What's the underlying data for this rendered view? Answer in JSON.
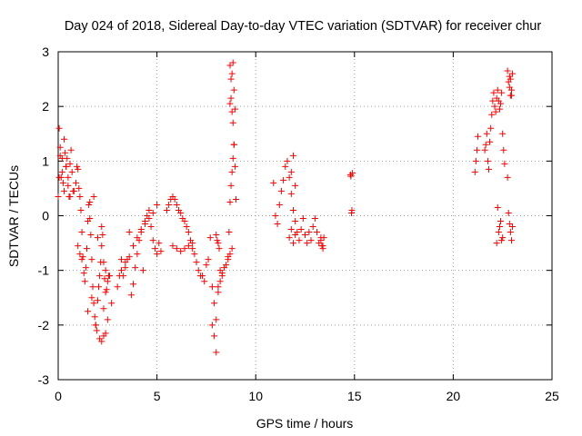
{
  "chart_data": {
    "type": "scatter",
    "title": "Day 024 of 2018, Sidereal Day-to-day VTEC variation (SDTVAR) for receiver chur",
    "xlabel": "GPS time / hours",
    "ylabel": "SDTVAR / TECUs",
    "xlim": [
      0,
      25
    ],
    "ylim": [
      -3,
      3
    ],
    "xticks": [
      0,
      5,
      10,
      15,
      20,
      25
    ],
    "yticks": [
      -3,
      -2,
      -1,
      0,
      1,
      2,
      3
    ],
    "xtick_labels": [
      "0",
      "5",
      "10",
      "15",
      "20",
      "25"
    ],
    "ytick_labels": [
      "-3",
      "-2",
      "-1",
      "0",
      "1",
      "2",
      "3"
    ],
    "grid": true,
    "marker": "+",
    "color": "#ff0000",
    "series": [
      {
        "name": "SDTVAR",
        "x": [
          0.0,
          0.05,
          0.1,
          0.15,
          0.2,
          0.25,
          0.3,
          0.35,
          0.4,
          0.45,
          0.5,
          0.55,
          0.6,
          0.65,
          0.7,
          0.75,
          0.8,
          0.05,
          0.1,
          0.2,
          0.3,
          0.4,
          0.5,
          0.6,
          0.9,
          0.95,
          1.0,
          1.05,
          1.1,
          1.15,
          1.2,
          1.25,
          1.3,
          1.35,
          1.4,
          1.45,
          1.5,
          1.55,
          1.6,
          1.65,
          1.7,
          1.75,
          1.8,
          1.85,
          1.9,
          1.95,
          2.0,
          2.05,
          2.1,
          2.15,
          2.2,
          2.25,
          2.3,
          2.35,
          2.4,
          2.45,
          2.5,
          2.55,
          1.0,
          1.1,
          1.2,
          1.6,
          1.8,
          2.0,
          2.2,
          2.4,
          2.6,
          1.5,
          1.7,
          1.9,
          2.1,
          2.3,
          2.5,
          2.7,
          2.2,
          2.3,
          2.4,
          3.0,
          3.1,
          3.2,
          3.3,
          3.4,
          3.5,
          3.6,
          3.7,
          3.8,
          3.9,
          4.0,
          4.1,
          4.2,
          4.3,
          4.4,
          4.5,
          4.6,
          4.7,
          4.8,
          4.9,
          5.0,
          5.1,
          5.2,
          3.2,
          3.4,
          3.6,
          3.8,
          4.0,
          4.2,
          4.4,
          4.6,
          4.8,
          5.0,
          5.5,
          5.6,
          5.7,
          5.8,
          5.9,
          6.0,
          6.1,
          6.2,
          6.3,
          6.4,
          6.5,
          6.6,
          6.7,
          6.8,
          6.9,
          7.0,
          7.1,
          7.2,
          5.8,
          6.0,
          6.2,
          6.4,
          6.6,
          6.8,
          7.3,
          7.4,
          7.5,
          7.6,
          7.7,
          7.8,
          7.9,
          8.0,
          8.1,
          8.2,
          8.3,
          8.4,
          8.5,
          8.6,
          8.7,
          8.8,
          7.8,
          7.9,
          8.0,
          8.1,
          8.2,
          8.3,
          8.0,
          8.1,
          8.05,
          8.15,
          8.6,
          8.65,
          8.7,
          8.75,
          8.8,
          8.85,
          8.9,
          8.95,
          9.0,
          8.7,
          8.75,
          8.8,
          8.85,
          8.9,
          8.95,
          8.7,
          8.75,
          8.8,
          8.85,
          8.9,
          10.9,
          11.0,
          11.1,
          11.2,
          11.3,
          11.4,
          11.5,
          11.6,
          11.7,
          11.8,
          11.9,
          12.0,
          12.1,
          12.2,
          12.3,
          12.4,
          12.5,
          12.6,
          12.7,
          12.8,
          12.9,
          13.0,
          13.1,
          13.2,
          13.3,
          13.4,
          11.7,
          11.8,
          11.9,
          12.0,
          11.8,
          11.9,
          12.0,
          13.3,
          13.4,
          13.35,
          13.45,
          14.8,
          14.82,
          14.85,
          14.87,
          14.9,
          21.1,
          21.15,
          21.2,
          21.25,
          21.6,
          21.65,
          21.7,
          21.75,
          21.8,
          21.85,
          21.9,
          21.95,
          22.0,
          22.05,
          22.1,
          22.15,
          22.2,
          22.25,
          22.3,
          22.35,
          22.4,
          22.45,
          22.5,
          22.55,
          22.6,
          22.2,
          22.3,
          22.4,
          22.5,
          22.25,
          22.35,
          22.45,
          22.75,
          22.8,
          22.85,
          22.9,
          22.95,
          23.0,
          22.75,
          22.8,
          22.85,
          22.9,
          22.95,
          23.0,
          22.85,
          22.9,
          22.95
        ],
        "y": [
          0.35,
          1.6,
          1.25,
          0.7,
          1.05,
          0.6,
          0.45,
          1.15,
          0.9,
          1.05,
          0.55,
          0.35,
          0.95,
          1.2,
          0.8,
          0.45,
          0.45,
          0.7,
          1.1,
          0.8,
          1.4,
          0.9,
          0.7,
          0.35,
          0.6,
          0.9,
          0.85,
          0.5,
          0.35,
          0.1,
          -0.3,
          -0.75,
          -1.05,
          -1.2,
          -0.95,
          -0.6,
          -0.1,
          0.2,
          0.25,
          -0.35,
          -0.8,
          -1.3,
          -1.6,
          -1.85,
          -2.0,
          -2.1,
          -1.55,
          -1.3,
          -1.1,
          -0.85,
          -0.55,
          -0.35,
          -0.85,
          -1.15,
          -1.4,
          -1.35,
          -1.2,
          -1.1,
          -0.55,
          -0.7,
          -0.8,
          -0.05,
          0.35,
          -0.4,
          -0.2,
          -1.0,
          -1.1,
          -1.75,
          -1.5,
          -2.0,
          -2.25,
          -1.7,
          -1.9,
          -1.6,
          -2.3,
          -2.2,
          -2.15,
          -1.3,
          -1.1,
          -0.8,
          -1.1,
          -0.95,
          -0.8,
          -0.3,
          -1.45,
          -1.25,
          -0.95,
          -0.7,
          -0.45,
          -0.3,
          -1.0,
          -0.15,
          0.0,
          0.1,
          -0.2,
          -0.45,
          -0.6,
          -0.7,
          -0.5,
          -0.65,
          -1.0,
          -0.85,
          -0.75,
          -0.55,
          -0.4,
          -0.25,
          -0.1,
          -0.05,
          0.05,
          0.2,
          0.1,
          0.2,
          0.3,
          0.35,
          0.3,
          0.2,
          0.1,
          0.05,
          -0.05,
          -0.1,
          -0.2,
          -0.3,
          -0.45,
          -0.6,
          -0.7,
          -0.85,
          -1.0,
          -1.1,
          -0.55,
          -0.6,
          -0.65,
          -0.6,
          -0.55,
          -0.5,
          -1.1,
          -1.2,
          -0.9,
          -0.8,
          -0.4,
          -1.3,
          -1.6,
          -1.9,
          -1.4,
          -1.2,
          -1.05,
          -0.95,
          -0.9,
          -0.8,
          -0.7,
          -0.6,
          -2.0,
          -2.2,
          -2.5,
          -1.3,
          -1.0,
          -1.1,
          -0.35,
          -0.5,
          -0.45,
          -0.6,
          -0.75,
          -0.3,
          0.25,
          0.55,
          0.8,
          1.05,
          1.3,
          0.9,
          0.3,
          2.75,
          2.5,
          2.6,
          2.8,
          2.3,
          1.95,
          2.05,
          2.15,
          1.9,
          1.7,
          1.3,
          0.6,
          0.0,
          -0.15,
          0.2,
          0.45,
          0.65,
          0.9,
          1.0,
          0.7,
          0.4,
          0.1,
          -0.1,
          -0.3,
          -0.45,
          -0.25,
          -0.05,
          -0.35,
          -0.5,
          -0.3,
          -0.45,
          -0.2,
          -0.05,
          -0.3,
          -0.5,
          -0.4,
          -0.55,
          -0.4,
          -0.25,
          -0.5,
          -0.35,
          0.8,
          1.1,
          0.55,
          -0.45,
          -0.6,
          -0.55,
          -0.4,
          0.75,
          0.72,
          0.05,
          0.1,
          0.78,
          0.8,
          1.0,
          1.2,
          1.45,
          1.2,
          1.3,
          1.5,
          1.0,
          0.85,
          1.35,
          1.6,
          1.85,
          2.1,
          2.25,
          2.0,
          1.9,
          2.15,
          2.3,
          2.1,
          1.95,
          2.05,
          2.25,
          1.5,
          1.2,
          0.95,
          -0.5,
          -0.3,
          -0.1,
          -0.4,
          0.15,
          -0.2,
          -0.45,
          2.65,
          2.45,
          2.55,
          2.2,
          2.3,
          2.6,
          0.7,
          0.05,
          -0.15,
          -0.3,
          -0.45,
          -0.2,
          2.35,
          2.5,
          2.2
        ]
      }
    ]
  }
}
